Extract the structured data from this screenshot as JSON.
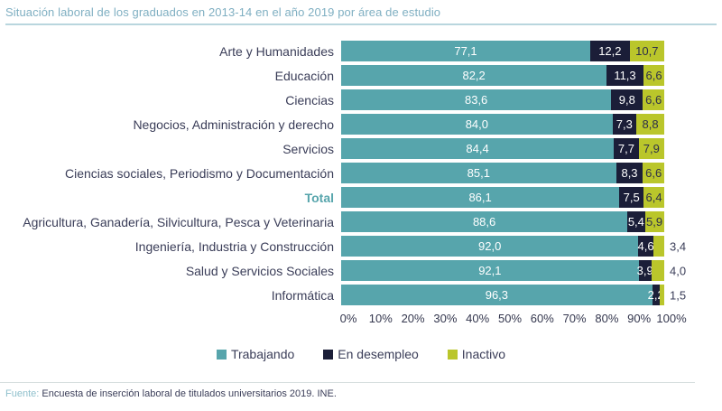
{
  "title": "Situación laboral de los graduados en 2013-14 en el año 2019 por área de estudio",
  "chart_data": {
    "type": "bar",
    "orientation": "horizontal",
    "stacked": true,
    "xlim": [
      0,
      100
    ],
    "x_tick_labels": [
      "0%",
      "10%",
      "20%",
      "30%",
      "40%",
      "50%",
      "60%",
      "70%",
      "80%",
      "90%",
      "100%"
    ],
    "legend_position": "bottom",
    "grid": false,
    "emphasized_category": "Total",
    "categories": [
      "Arte y Humanidades",
      "Educación",
      "Ciencias",
      "Negocios, Administración y derecho",
      "Servicios",
      "Ciencias sociales, Periodismo y Documentación",
      "Total",
      "Agricultura, Ganadería, Silvicultura, Pesca y Veterinaria",
      "Ingeniería, Industria y Construcción",
      "Salud y Servicios Sociales",
      "Informática"
    ],
    "series": [
      {
        "name": "Trabajando",
        "color": "#57a5ac",
        "label_color": "#ffffff",
        "values": [
          77.1,
          82.2,
          83.6,
          84.0,
          84.4,
          85.1,
          86.1,
          88.6,
          92.0,
          92.1,
          96.3
        ],
        "labels": [
          "77,1",
          "82,2",
          "83,6",
          "84,0",
          "84,4",
          "85,1",
          "86,1",
          "88,6",
          "92,0",
          "92,1",
          "96,3"
        ],
        "labels_outside": [
          false,
          false,
          false,
          false,
          false,
          false,
          false,
          false,
          false,
          false,
          false
        ]
      },
      {
        "name": "En desempleo",
        "color": "#1b1e38",
        "label_color": "#ffffff",
        "values": [
          12.2,
          11.3,
          9.8,
          7.3,
          7.7,
          8.3,
          7.5,
          5.4,
          4.6,
          3.9,
          2.2
        ],
        "labels": [
          "12,2",
          "11,3",
          "9,8",
          "7,3",
          "7,7",
          "8,3",
          "7,5",
          "5,4",
          "4,6",
          "3,9",
          "2,2"
        ],
        "labels_outside": [
          false,
          false,
          false,
          false,
          false,
          false,
          false,
          false,
          false,
          false,
          false
        ]
      },
      {
        "name": "Inactivo",
        "color": "#bac62b",
        "label_color": "#2c2f4a",
        "values": [
          10.7,
          6.6,
          6.6,
          8.8,
          7.9,
          6.6,
          6.4,
          5.9,
          3.4,
          4.0,
          1.5
        ],
        "labels": [
          "10,7",
          "6,6",
          "6,6",
          "8,8",
          "7,9",
          "6,6",
          "6,4",
          "5,9",
          "3,4",
          "4,0",
          "1,5"
        ],
        "labels_outside": [
          false,
          false,
          false,
          false,
          false,
          false,
          false,
          false,
          true,
          true,
          true
        ]
      }
    ]
  },
  "footer": {
    "source_label": "Fuente:",
    "source_text": "Encuesta de inserción laboral de titulados universitarios 2019. INE."
  }
}
